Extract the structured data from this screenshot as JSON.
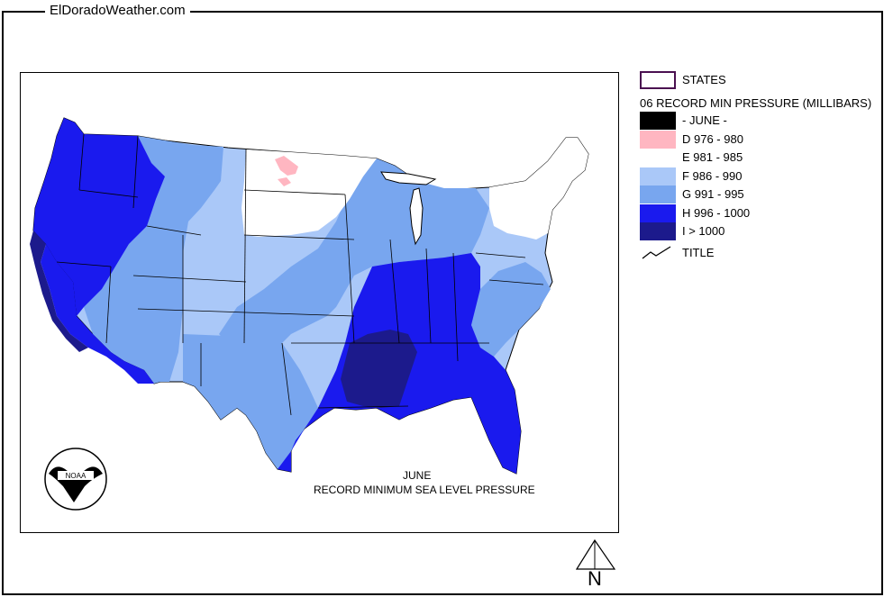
{
  "site": {
    "title": "ElDoradoWeather.com"
  },
  "map": {
    "title": "JUNE",
    "subtitle": "RECORD  MINIMUM SEA LEVEL PRESSURE",
    "logo_lettering": "NOAA",
    "colors": {
      "D": "#ffb6c1",
      "E": "#ffffff",
      "F": "#aac8f8",
      "G": "#78a6ef",
      "H": "#1a1aee",
      "I": "#1c1a8c"
    }
  },
  "legend": {
    "states_label": "STATES",
    "heading": "06 RECORD MIN PRESSURE (MILLIBARS)",
    "items": [
      {
        "label": "- JUNE -",
        "color": "#000000"
      },
      {
        "label": "D 976 - 980",
        "color": "#ffb6c1"
      },
      {
        "label": "E 981 - 985",
        "color": "#ffffff"
      },
      {
        "label": "F 986 - 990",
        "color": "#aac8f8"
      },
      {
        "label": "G 991 - 995",
        "color": "#78a6ef"
      },
      {
        "label": "H 996 - 1000",
        "color": "#1a1aee"
      },
      {
        "label": "I > 1000",
        "color": "#1c1a8c"
      }
    ],
    "title_item": "TITLE"
  },
  "compass": {
    "label": "N"
  }
}
